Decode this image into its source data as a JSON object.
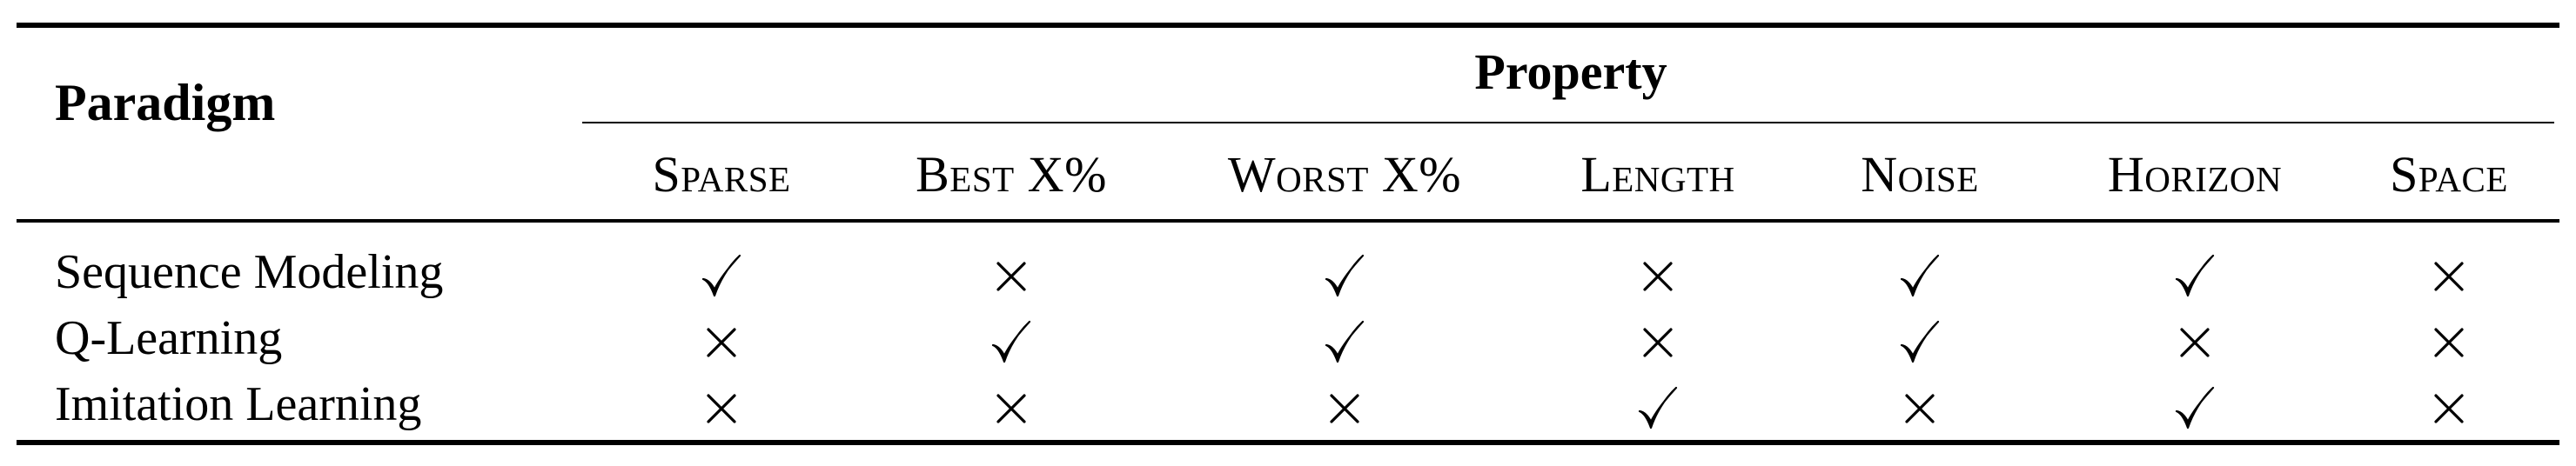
{
  "table": {
    "paradigm_header": "Paradigm",
    "property_header": "Property",
    "columns": [
      "Sparse",
      "Best X%",
      "Worst X%",
      "Length",
      "Noise",
      "Horizon",
      "Space"
    ],
    "rows": [
      {
        "label": "Sequence Modeling",
        "marks": [
          "check",
          "cross",
          "check",
          "cross",
          "check",
          "check",
          "cross"
        ]
      },
      {
        "label": "Q-Learning",
        "marks": [
          "cross",
          "check",
          "check",
          "cross",
          "check",
          "cross",
          "cross"
        ]
      },
      {
        "label": "Imitation Learning",
        "marks": [
          "cross",
          "cross",
          "cross",
          "check",
          "cross",
          "check",
          "cross"
        ]
      }
    ]
  }
}
